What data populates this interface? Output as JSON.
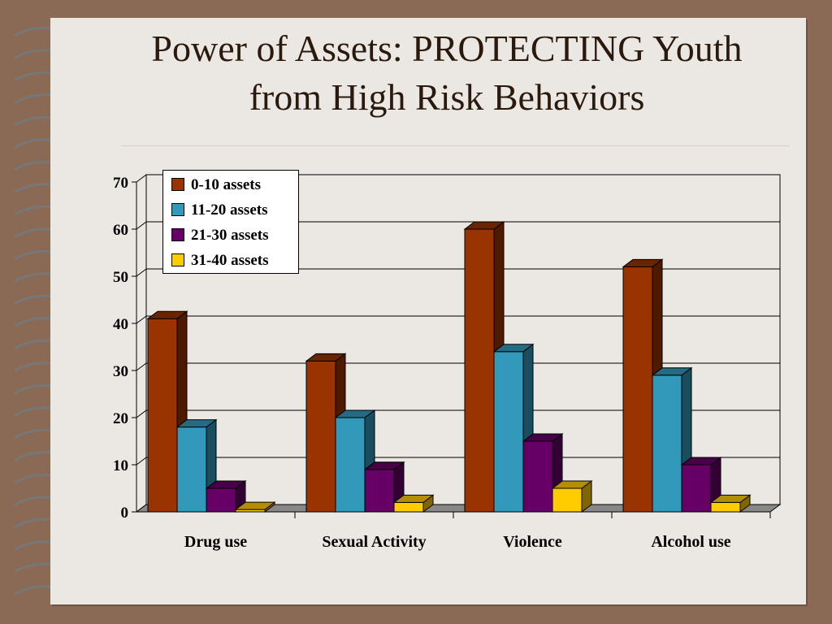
{
  "slide": {
    "title_line1": "Power of Assets:  PROTECTING Youth",
    "title_line2": "from High Risk Behaviors"
  },
  "colors": {
    "0-10 assets": "#993300",
    "11-20 assets": "#3399bb",
    "21-30 assets": "#660066",
    "31-40 assets": "#ffcc00",
    "background": "#ebe7e3",
    "frame": "#8b6a55"
  },
  "chart_data": {
    "type": "bar",
    "style": "3d-clustered-column",
    "title": "",
    "xlabel": "",
    "ylabel": "",
    "ylim": [
      0,
      70
    ],
    "yticks": [
      0,
      10,
      20,
      30,
      40,
      50,
      60,
      70
    ],
    "grid": true,
    "legend_position": "top-left",
    "categories": [
      "Drug use",
      "Sexual Activity",
      "Violence",
      "Alcohol use"
    ],
    "series": [
      {
        "name": "0-10 assets",
        "values": [
          41,
          32,
          60,
          52
        ]
      },
      {
        "name": "11-20 assets",
        "values": [
          18,
          20,
          34,
          29
        ]
      },
      {
        "name": "21-30 assets",
        "values": [
          5,
          9,
          15,
          10
        ]
      },
      {
        "name": "31-40 assets",
        "values": [
          0.5,
          2,
          5,
          2
        ]
      }
    ]
  }
}
